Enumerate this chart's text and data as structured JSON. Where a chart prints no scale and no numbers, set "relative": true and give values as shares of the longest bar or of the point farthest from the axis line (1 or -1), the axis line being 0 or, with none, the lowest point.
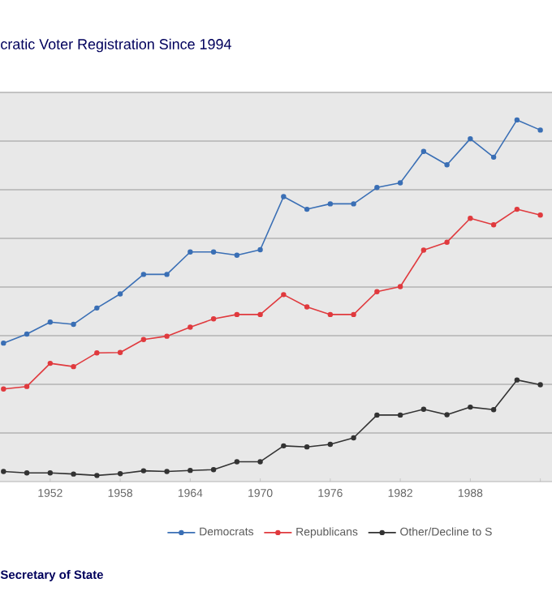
{
  "chart_data": {
    "type": "line",
    "title": "cratic Voter Registration Since 1994",
    "relative": true,
    "x": [
      1948,
      1950,
      1952,
      1954,
      1956,
      1958,
      1960,
      1962,
      1964,
      1966,
      1968,
      1970,
      1972,
      1974,
      1976,
      1978,
      1980,
      1982,
      1984,
      1986,
      1988,
      1990,
      1992,
      1994
    ],
    "xlim": [
      1947.7,
      1995
    ],
    "xticks": [
      1952,
      1958,
      1964,
      1970,
      1976,
      1982,
      1988,
      {
        "value": 1994,
        "label": null
      }
    ],
    "series": [
      {
        "name": "Democrats",
        "color": "#3a6fb5",
        "values": [
          0.383,
          0.408,
          0.441,
          0.435,
          0.48,
          0.519,
          0.573,
          0.573,
          0.635,
          0.635,
          0.626,
          0.641,
          0.788,
          0.753,
          0.768,
          0.768,
          0.813,
          0.826,
          0.913,
          0.876,
          0.948,
          0.897,
          1.0,
          0.972
        ]
      },
      {
        "name": "Republicans",
        "color": "#e03a3e",
        "values": [
          0.256,
          0.263,
          0.327,
          0.318,
          0.356,
          0.357,
          0.393,
          0.402,
          0.427,
          0.45,
          0.462,
          0.462,
          0.517,
          0.483,
          0.462,
          0.462,
          0.525,
          0.539,
          0.64,
          0.662,
          0.728,
          0.71,
          0.753,
          0.737
        ]
      },
      {
        "name": "Other/Decline to S",
        "color": "#333333",
        "values": [
          0.028,
          0.024,
          0.024,
          0.021,
          0.017,
          0.022,
          0.03,
          0.028,
          0.031,
          0.033,
          0.055,
          0.055,
          0.099,
          0.096,
          0.103,
          0.121,
          0.184,
          0.184,
          0.2,
          0.185,
          0.206,
          0.199,
          0.281,
          0.268
        ]
      }
    ],
    "grid": "y",
    "legend": "bottom",
    "marker": "circle",
    "line_style": "solid",
    "tick_labels": "x",
    "annotations": [
      "Secretary of State"
    ]
  }
}
